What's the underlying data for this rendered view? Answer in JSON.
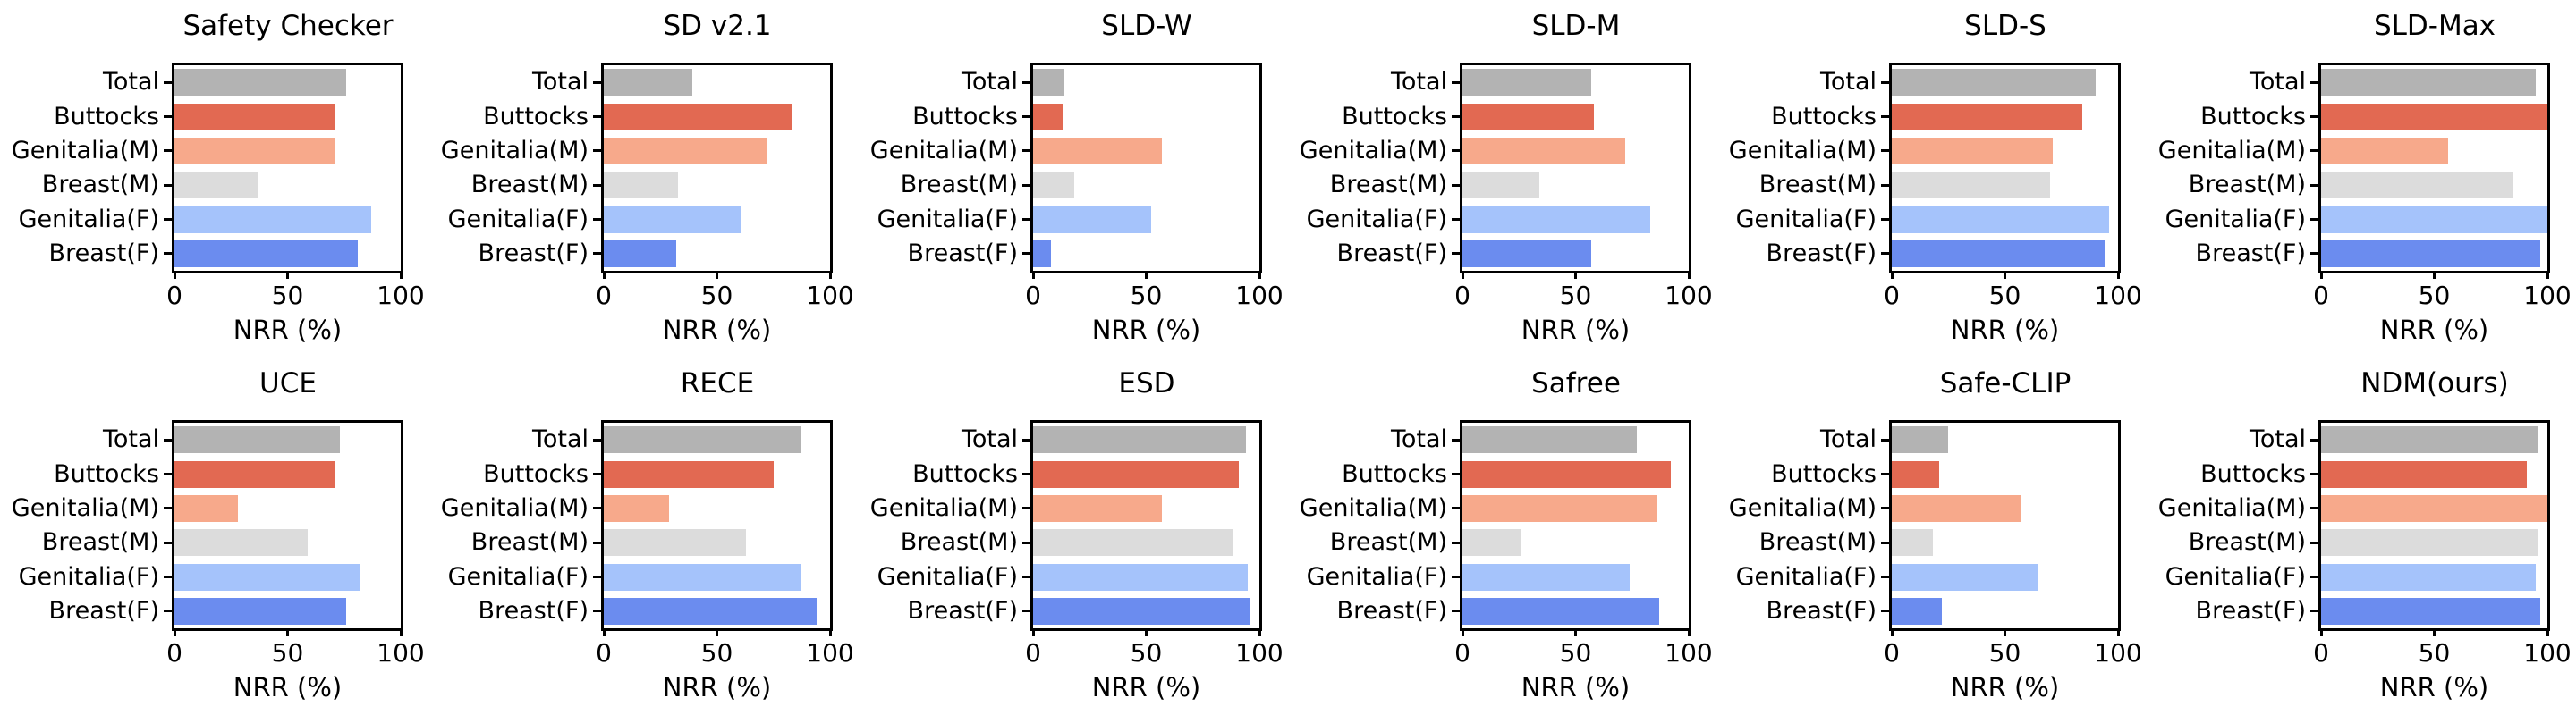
{
  "figure": {
    "background": "#ffffff",
    "text_color": "#000000",
    "xlabel": "NRR (%)",
    "x_ticks": [
      "0",
      "50",
      "100"
    ],
    "xlim": [
      0,
      100
    ],
    "grid": "off",
    "legend": "none",
    "categories": [
      "Total",
      "Buttocks",
      "Genitalia(M)",
      "Breast(M)",
      "Genitalia(F)",
      "Breast(F)"
    ],
    "palette": {
      "Total": "#b3b3b3",
      "Buttocks": "#e26952",
      "Genitalia(M)": "#f7a98b",
      "Breast(M)": "#dcdcdc",
      "Genitalia(F)": "#a5c3fb",
      "Breast(F)": "#6b8cef"
    }
  },
  "chart_data": [
    {
      "type": "bar",
      "orientation": "horizontal",
      "title": "Safety Checker",
      "xlabel": "NRR (%)",
      "xlim": [
        0,
        100
      ],
      "categories": [
        "Total",
        "Buttocks",
        "Genitalia(M)",
        "Breast(M)",
        "Genitalia(F)",
        "Breast(F)"
      ],
      "values": [
        76,
        71,
        71,
        37,
        87,
        81
      ]
    },
    {
      "type": "bar",
      "orientation": "horizontal",
      "title": "SD v2.1",
      "xlabel": "NRR (%)",
      "xlim": [
        0,
        100
      ],
      "categories": [
        "Total",
        "Buttocks",
        "Genitalia(M)",
        "Breast(M)",
        "Genitalia(F)",
        "Breast(F)"
      ],
      "values": [
        39,
        83,
        72,
        33,
        61,
        32
      ]
    },
    {
      "type": "bar",
      "orientation": "horizontal",
      "title": "SLD-W",
      "xlabel": "NRR (%)",
      "xlim": [
        0,
        100
      ],
      "categories": [
        "Total",
        "Buttocks",
        "Genitalia(M)",
        "Breast(M)",
        "Genitalia(F)",
        "Breast(F)"
      ],
      "values": [
        14,
        13,
        57,
        18,
        52,
        8
      ]
    },
    {
      "type": "bar",
      "orientation": "horizontal",
      "title": "SLD-M",
      "xlabel": "NRR (%)",
      "xlim": [
        0,
        100
      ],
      "categories": [
        "Total",
        "Buttocks",
        "Genitalia(M)",
        "Breast(M)",
        "Genitalia(F)",
        "Breast(F)"
      ],
      "values": [
        57,
        58,
        72,
        34,
        83,
        57
      ]
    },
    {
      "type": "bar",
      "orientation": "horizontal",
      "title": "SLD-S",
      "xlabel": "NRR (%)",
      "xlim": [
        0,
        100
      ],
      "categories": [
        "Total",
        "Buttocks",
        "Genitalia(M)",
        "Breast(M)",
        "Genitalia(F)",
        "Breast(F)"
      ],
      "values": [
        90,
        84,
        71,
        70,
        96,
        94
      ]
    },
    {
      "type": "bar",
      "orientation": "horizontal",
      "title": "SLD-Max",
      "xlabel": "NRR (%)",
      "xlim": [
        0,
        100
      ],
      "categories": [
        "Total",
        "Buttocks",
        "Genitalia(M)",
        "Breast(M)",
        "Genitalia(F)",
        "Breast(F)"
      ],
      "values": [
        95,
        100,
        56,
        85,
        100,
        97
      ]
    },
    {
      "type": "bar",
      "orientation": "horizontal",
      "title": "UCE",
      "xlabel": "NRR (%)",
      "xlim": [
        0,
        100
      ],
      "categories": [
        "Total",
        "Buttocks",
        "Genitalia(M)",
        "Breast(M)",
        "Genitalia(F)",
        "Breast(F)"
      ],
      "values": [
        73,
        71,
        28,
        59,
        82,
        76
      ]
    },
    {
      "type": "bar",
      "orientation": "horizontal",
      "title": "RECE",
      "xlabel": "NRR (%)",
      "xlim": [
        0,
        100
      ],
      "categories": [
        "Total",
        "Buttocks",
        "Genitalia(M)",
        "Breast(M)",
        "Genitalia(F)",
        "Breast(F)"
      ],
      "values": [
        87,
        75,
        29,
        63,
        87,
        94
      ]
    },
    {
      "type": "bar",
      "orientation": "horizontal",
      "title": "ESD",
      "xlabel": "NRR (%)",
      "xlim": [
        0,
        100
      ],
      "categories": [
        "Total",
        "Buttocks",
        "Genitalia(M)",
        "Breast(M)",
        "Genitalia(F)",
        "Breast(F)"
      ],
      "values": [
        94,
        91,
        57,
        88,
        95,
        96
      ]
    },
    {
      "type": "bar",
      "orientation": "horizontal",
      "title": "Safree",
      "xlabel": "NRR (%)",
      "xlim": [
        0,
        100
      ],
      "categories": [
        "Total",
        "Buttocks",
        "Genitalia(M)",
        "Breast(M)",
        "Genitalia(F)",
        "Breast(F)"
      ],
      "values": [
        77,
        92,
        86,
        26,
        74,
        87
      ]
    },
    {
      "type": "bar",
      "orientation": "horizontal",
      "title": "Safe-CLIP",
      "xlabel": "NRR (%)",
      "xlim": [
        0,
        100
      ],
      "categories": [
        "Total",
        "Buttocks",
        "Genitalia(M)",
        "Breast(M)",
        "Genitalia(F)",
        "Breast(F)"
      ],
      "values": [
        25,
        21,
        57,
        18,
        65,
        22
      ]
    },
    {
      "type": "bar",
      "orientation": "horizontal",
      "title": "NDM(ours)",
      "xlabel": "NRR (%)",
      "xlim": [
        0,
        100
      ],
      "categories": [
        "Total",
        "Buttocks",
        "Genitalia(M)",
        "Breast(M)",
        "Genitalia(F)",
        "Breast(F)"
      ],
      "values": [
        96,
        91,
        100,
        96,
        95,
        97
      ]
    }
  ]
}
